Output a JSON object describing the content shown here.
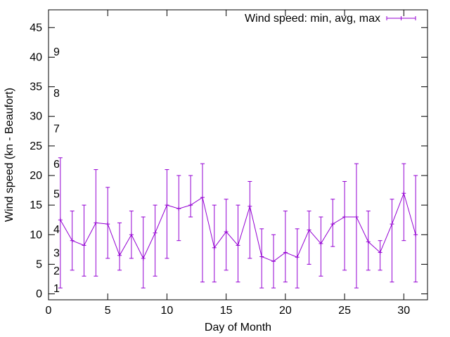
{
  "chart_data": {
    "type": "line",
    "title": "",
    "xlabel": "Day of Month",
    "ylabel": "Wind speed (kn - Beaufort)",
    "xlim": [
      0,
      32
    ],
    "ylim": [
      -1,
      48
    ],
    "xticks": [
      0,
      5,
      10,
      15,
      20,
      25,
      30
    ],
    "yticks": [
      0,
      5,
      10,
      15,
      20,
      25,
      30,
      35,
      40,
      45
    ],
    "grid": false,
    "legend_position": "top-right",
    "series_color": "#9400d3",
    "series": [
      {
        "name": "Wind speed: min, avg, max",
        "points": [
          {
            "day": 1,
            "min": 1,
            "avg": 12.5,
            "max": 23
          },
          {
            "day": 2,
            "min": 4,
            "avg": 9,
            "max": 14
          },
          {
            "day": 3,
            "min": 3,
            "avg": 8.2,
            "max": 15
          },
          {
            "day": 4,
            "min": 3,
            "avg": 12,
            "max": 21
          },
          {
            "day": 5,
            "min": 6,
            "avg": 11.8,
            "max": 18
          },
          {
            "day": 6,
            "min": 4,
            "avg": 6.5,
            "max": 12
          },
          {
            "day": 7,
            "min": 6,
            "avg": 10,
            "max": 14
          },
          {
            "day": 8,
            "min": 1,
            "avg": 6,
            "max": 13
          },
          {
            "day": 9,
            "min": 3,
            "avg": 10.3,
            "max": 15
          },
          {
            "day": 10,
            "min": 6,
            "avg": 15,
            "max": 21
          },
          {
            "day": 11,
            "min": 9,
            "avg": 14.4,
            "max": 20
          },
          {
            "day": 12,
            "min": 13,
            "avg": 15,
            "max": 20
          },
          {
            "day": 13,
            "min": 2,
            "avg": 16.3,
            "max": 22
          },
          {
            "day": 14,
            "min": 2,
            "avg": 7.8,
            "max": 15
          },
          {
            "day": 15,
            "min": 4,
            "avg": 10.5,
            "max": 16
          },
          {
            "day": 16,
            "min": 2,
            "avg": 8.2,
            "max": 15
          },
          {
            "day": 17,
            "min": 6,
            "avg": 14.8,
            "max": 19
          },
          {
            "day": 18,
            "min": 1,
            "avg": 6.3,
            "max": 11
          },
          {
            "day": 19,
            "min": 1,
            "avg": 5.5,
            "max": 10
          },
          {
            "day": 20,
            "min": 2,
            "avg": 7,
            "max": 14
          },
          {
            "day": 21,
            "min": 1,
            "avg": 6.2,
            "max": 11
          },
          {
            "day": 22,
            "min": 5,
            "avg": 10.8,
            "max": 14
          },
          {
            "day": 23,
            "min": 3,
            "avg": 8.5,
            "max": 13
          },
          {
            "day": 24,
            "min": 8,
            "avg": 11.8,
            "max": 16
          },
          {
            "day": 25,
            "min": 4,
            "avg": 13,
            "max": 19
          },
          {
            "day": 26,
            "min": 1,
            "avg": 13,
            "max": 22
          },
          {
            "day": 27,
            "min": 4,
            "avg": 8.8,
            "max": 14
          },
          {
            "day": 28,
            "min": 4,
            "avg": 7,
            "max": 9
          },
          {
            "day": 29,
            "min": 2,
            "avg": 11.8,
            "max": 16
          },
          {
            "day": 30,
            "min": 9,
            "avg": 17,
            "max": 22
          },
          {
            "day": 31,
            "min": 2,
            "avg": 10,
            "max": 20
          }
        ]
      }
    ],
    "annotations": [
      {
        "text": "1",
        "y": 1
      },
      {
        "text": "2",
        "y": 4
      },
      {
        "text": "3",
        "y": 7
      },
      {
        "text": "4",
        "y": 11
      },
      {
        "text": "5",
        "y": 17
      },
      {
        "text": "6",
        "y": 22
      },
      {
        "text": "7",
        "y": 28
      },
      {
        "text": "8",
        "y": 34
      },
      {
        "text": "9",
        "y": 41
      }
    ]
  }
}
